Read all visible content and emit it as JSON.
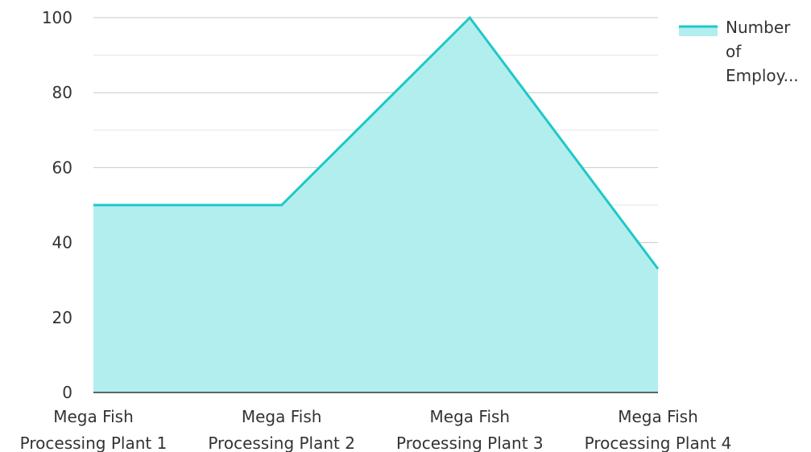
{
  "chart_data": {
    "type": "area",
    "title": "",
    "xlabel": "",
    "ylabel": "",
    "categories": [
      "Mega Fish Processing Plant 1",
      "Mega Fish Processing Plant 2",
      "Mega Fish Processing Plant 3",
      "Mega Fish Processing Plant 4"
    ],
    "category_label_lines": [
      [
        "Mega Fish",
        "Processing Plant 1"
      ],
      [
        "Mega Fish",
        "Processing Plant 2"
      ],
      [
        "Mega Fish",
        "Processing Plant 3"
      ],
      [
        "Mega Fish",
        "Processing Plant 4"
      ]
    ],
    "series": [
      {
        "name": "Number of Employ...",
        "legend_lines": [
          "Number",
          "of",
          "Employ..."
        ],
        "values": [
          50,
          50,
          100,
          33
        ],
        "line_color": "#1ec8c8",
        "fill_color": "#b2eeee"
      }
    ],
    "ylim": [
      0,
      100
    ],
    "yticks": [
      0,
      20,
      40,
      60,
      80,
      100
    ],
    "grid": true,
    "legend_position": "top-right"
  }
}
